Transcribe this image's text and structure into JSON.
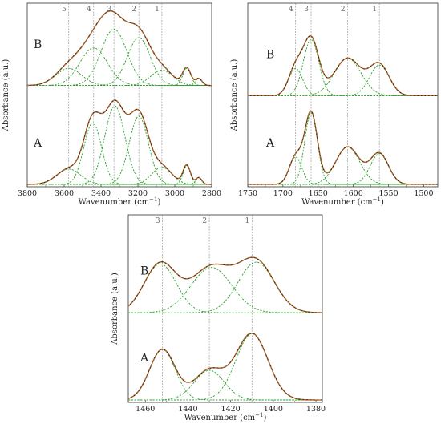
{
  "chart_data": [
    {
      "type": "line",
      "panel": "top-left",
      "xlabel_main": "Wavenumber (cm",
      "xlabel_sup": "−1",
      "xlabel_close": ")",
      "ylabel": "Absorbance (a.u.)",
      "xlim": [
        3800,
        2800
      ],
      "xticks": [
        "3800",
        "3600",
        "3400",
        "3200",
        "3000",
        "2800"
      ],
      "marker_lines": [
        {
          "label": "5",
          "x": 3575
        },
        {
          "label": "4",
          "x": 3440
        },
        {
          "label": "3",
          "x": 3330
        },
        {
          "label": "2",
          "x": 3195
        },
        {
          "label": "1",
          "x": 3070
        }
      ],
      "traces": [
        {
          "label": "B",
          "offset": 0.58,
          "peaks": [
            {
              "center": 3575,
              "height": 0.1,
              "width": 70
            },
            {
              "center": 3440,
              "height": 0.22,
              "width": 75
            },
            {
              "center": 3330,
              "height": 0.33,
              "width": 70
            },
            {
              "center": 3195,
              "height": 0.28,
              "width": 62
            },
            {
              "center": 3070,
              "height": 0.09,
              "width": 60
            },
            {
              "center": 2935,
              "height": 0.1,
              "width": 22
            },
            {
              "center": 2870,
              "height": 0.04,
              "width": 18
            }
          ]
        },
        {
          "label": "A",
          "offset": 0.0,
          "peaks": [
            {
              "center": 3575,
              "height": 0.09,
              "width": 65
            },
            {
              "center": 3445,
              "height": 0.36,
              "width": 48
            },
            {
              "center": 3325,
              "height": 0.46,
              "width": 55
            },
            {
              "center": 3195,
              "height": 0.4,
              "width": 52
            },
            {
              "center": 3070,
              "height": 0.1,
              "width": 55
            },
            {
              "center": 2935,
              "height": 0.11,
              "width": 20
            },
            {
              "center": 2870,
              "height": 0.04,
              "width": 16
            }
          ]
        }
      ]
    },
    {
      "type": "line",
      "panel": "top-right",
      "xlabel_main": "Wavenumber (cm",
      "xlabel_sup": "−1",
      "xlabel_close": ")",
      "ylabel": "Absorbance (a.u.)",
      "xlim": [
        1750,
        1480
      ],
      "xticks": [
        "1750",
        "1700",
        "1650",
        "1600",
        "1550",
        "1500"
      ],
      "marker_lines": [
        {
          "label": "4",
          "x": 1682
        },
        {
          "label": "3",
          "x": 1660
        },
        {
          "label": "2",
          "x": 1608
        },
        {
          "label": "1",
          "x": 1563
        }
      ],
      "traces": [
        {
          "label": "B",
          "offset": 0.52,
          "peaks": [
            {
              "center": 1682,
              "height": 0.16,
              "width": 10
            },
            {
              "center": 1660,
              "height": 0.33,
              "width": 11
            },
            {
              "center": 1608,
              "height": 0.22,
              "width": 19
            },
            {
              "center": 1563,
              "height": 0.18,
              "width": 14
            }
          ]
        },
        {
          "label": "A",
          "offset": 0.0,
          "peaks": [
            {
              "center": 1682,
              "height": 0.16,
              "width": 9
            },
            {
              "center": 1660,
              "height": 0.42,
              "width": 9
            },
            {
              "center": 1608,
              "height": 0.22,
              "width": 17
            },
            {
              "center": 1563,
              "height": 0.18,
              "width": 13
            }
          ]
        }
      ]
    },
    {
      "type": "line",
      "panel": "bottom-center",
      "xlabel_main": "Wavenumber (cm",
      "xlabel_sup": "−1",
      "xlabel_close": ")",
      "ylabel": "Absorbance (a.u.)",
      "xlim": [
        1468,
        1377
      ],
      "xticks": [
        "1460",
        "1440",
        "1420",
        "1400",
        "1380"
      ],
      "marker_lines": [
        {
          "label": "3",
          "x": 1452
        },
        {
          "label": "2",
          "x": 1430
        },
        {
          "label": "1",
          "x": 1410
        }
      ],
      "traces": [
        {
          "label": "B",
          "offset": 0.5,
          "peaks": [
            {
              "center": 1453,
              "height": 0.28,
              "width": 7.5
            },
            {
              "center": 1429,
              "height": 0.26,
              "width": 9.5
            },
            {
              "center": 1408,
              "height": 0.29,
              "width": 8.5
            }
          ]
        },
        {
          "label": "A",
          "offset": 0.0,
          "peaks": [
            {
              "center": 1452,
              "height": 0.29,
              "width": 6
            },
            {
              "center": 1430,
              "height": 0.17,
              "width": 7
            },
            {
              "center": 1410,
              "height": 0.38,
              "width": 7.5
            }
          ]
        }
      ]
    }
  ]
}
